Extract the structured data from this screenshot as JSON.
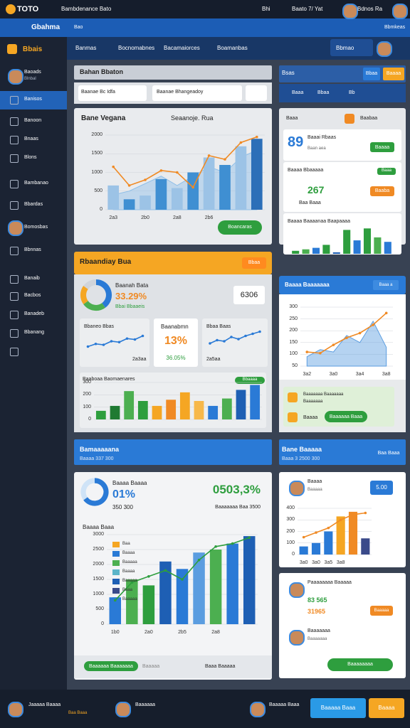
{
  "ui": {
    "topbar": {
      "brand": "TOTO",
      "title": "Bambdenance Bato",
      "badge": "Bhi",
      "status": "Baato 7/ Yat",
      "user": "Bdnos Ra"
    },
    "nav": {
      "title": "Gbahma",
      "link": "Bao",
      "right": "Bbmkeas"
    },
    "brand": "Bbais",
    "tabs": [
      "Banmas",
      "Bocnomabnes",
      "Bacamaiorces",
      "Boamanbas"
    ],
    "tab_action": "Bbmao",
    "sidebar": {
      "user": "Baoads",
      "user_sub": "Blnbal",
      "items": [
        "Banisos",
        "Banoon",
        "Bnaas",
        "Blons",
        "Bambanao",
        "Bbardas",
        "Bomosbas",
        "Bbnnas",
        "Banaib",
        "Bacbos",
        "Banadeb",
        "Bbanang"
      ]
    },
    "panel_a": {
      "title": "Bahan Bbaton",
      "search": "Baanae Bc Idfa",
      "filter": "Baanae Bhangeadoy"
    },
    "main_chart": {
      "title": "Bane Vegana",
      "subtitle": "Seaanoje. Rua",
      "button": "Boancaras"
    },
    "summary": {
      "title": "Rbaandiay Bua",
      "badge": "Bbaa",
      "donut_title": "Baanah Bata",
      "pct": "33.29%",
      "pct_sub": "Bbai Bbaaeis",
      "value": "6306",
      "card1": "Bbaneo Bbas",
      "card1_foot": "2a3aa",
      "card2": "Baanabmn",
      "card2_value": "13%",
      "card2_sub": "36.05%",
      "card3": "Bbaa Baas",
      "card3_foot": "2a5aa",
      "bars_title": "Baaboaa Baomaenares",
      "bars_badge": "Bbaaaa"
    },
    "right_top": {
      "title": "Bsas",
      "btn1": "Bbaa",
      "btn2": "Baaaa",
      "tabs": [
        "Baaa",
        "Bbaa",
        "Bb"
      ]
    },
    "right_card1": {
      "label": "Baaa",
      "badge": "Baabaa",
      "value": "89",
      "name": "Baaai Rbaas",
      "sub": "Baan aea",
      "button": "Baaaa"
    },
    "right_card2": {
      "title": "Baaaa Bbaaaaa",
      "badge": "Baaa",
      "value": "267",
      "sub": "Baa Baaa",
      "button": "Baaba"
    },
    "right_card3": {
      "title": "Baaaa Baaaanaa Baapaaaa"
    },
    "right_chart": {
      "title": "Baaaa Baaaaaaa",
      "button": "Baaa a"
    },
    "right_notice": {
      "line1": "Baaaaaaa Baaaaaaa",
      "line2": "Baaaaaaa",
      "icon_label": "Baaaa",
      "button": "Baaaaaa Baaa"
    },
    "section": {
      "title": "Bamaaaaana",
      "sub": "Baaaa 337 300",
      "title2": "Bane Baaaaa",
      "sub2": "Baaa 3 2500 300",
      "button": "Baa Baaa"
    },
    "bottom_card": {
      "title": "Baaaa Baaaa",
      "pct": "01%",
      "sub": "350 300",
      "big": "0503,3%",
      "big_sub": "Baaaaaaa Baa 3500"
    },
    "bottom_chart": {
      "title": "Baaaa Baaa",
      "button": "Baaaaaa Baaaaaaa",
      "link": "Baaaaa",
      "foot": "Baaa Baaaaa"
    },
    "bottom_right": {
      "name": "Baaaa",
      "sub": "Baaaaa",
      "value": "5.00"
    },
    "profile": {
      "name": "Paaaaaaaa Baaaaa",
      "value": "83 565",
      "value2": "31965",
      "name2": "Baaaaaaa",
      "sub2": "Baaaaaaa",
      "button": "Baaaaa",
      "button2": "Baaaaaaaa"
    },
    "footer": {
      "user": "Jaaaaa Baaaa",
      "sub": "Baa Baaa",
      "user2": "Baaaaaa",
      "user3": "Baaaaa Baaa",
      "btn": "Baaaaa Baaa",
      "btn2": "Baaaa"
    }
  },
  "chart_data": [
    {
      "type": "combo",
      "categories": [
        "2a3",
        null,
        "2b0",
        null,
        "2a8",
        null,
        "2b6",
        null,
        null,
        null
      ],
      "ylim": [
        0,
        2000
      ],
      "yticks": [
        0,
        500,
        1000,
        1500,
        2000
      ],
      "grid": true,
      "series": [
        {
          "kind": "area",
          "color": "#8fbfe8",
          "values": [
            400,
            500,
            700,
            900,
            650,
            900,
            1150,
            1000,
            1400,
            1600
          ]
        },
        {
          "kind": "bar",
          "colors": [
            "#9cc3e6",
            "#3f8fd2",
            "#9cc3e6",
            "#3f8fd2",
            "#9cc3e6",
            "#3f8fd2",
            "#9cc3e6",
            "#3f8fd2",
            "#9cc3e6",
            "#2c6fb8"
          ],
          "values": [
            650,
            280,
            380,
            820,
            580,
            1000,
            1400,
            1200,
            1700,
            1900
          ]
        },
        {
          "kind": "line",
          "color": "#f08a24",
          "dots": true,
          "values": [
            1150,
            650,
            800,
            1050,
            1000,
            600,
            1450,
            1350,
            1800,
            1950
          ]
        }
      ]
    },
    {
      "type": "line",
      "ylim": [
        0,
        100
      ],
      "series": [
        {
          "kind": "line",
          "color": "#2a7ad6",
          "dots": true,
          "values": [
            30,
            45,
            40,
            60,
            55,
            75,
            70,
            90
          ]
        }
      ]
    },
    {
      "type": "line",
      "ylim": [
        0,
        100
      ],
      "series": [
        {
          "kind": "line",
          "color": "#2a7ad6",
          "dots": true,
          "values": [
            40,
            55,
            50,
            70,
            60,
            75,
            85,
            95
          ]
        }
      ]
    },
    {
      "type": "bar",
      "ylim": [
        0,
        300
      ],
      "yticks": [
        0,
        100,
        200,
        300
      ],
      "grid": true,
      "series": [
        {
          "kind": "bar",
          "colors": [
            "#2e9e3e",
            "#1f7a32",
            "#4caf50",
            "#2e9e3e",
            "#f5a623",
            "#f08a24",
            "#f5a623",
            "#f7b84a",
            "#2a7ad6",
            "#4caf50",
            "#1e5fb4",
            "#2a7ad6"
          ],
          "values": [
            70,
            110,
            230,
            150,
            110,
            160,
            220,
            150,
            110,
            170,
            240,
            280
          ]
        }
      ]
    },
    {
      "type": "combo",
      "categories": [
        "3a2",
        null,
        "3a0",
        null,
        "3a4",
        null,
        "3a8"
      ],
      "ylim": [
        50,
        300
      ],
      "yticks": [
        50,
        100,
        150,
        200,
        250,
        300
      ],
      "grid": true,
      "series": [
        {
          "kind": "area",
          "color": "#5b9de0",
          "values": [
            90,
            120,
            110,
            180,
            150,
            240,
            130
          ]
        },
        {
          "kind": "line",
          "color": "#f08a24",
          "dots": true,
          "values": [
            110,
            105,
            140,
            170,
            190,
            225,
            275
          ]
        }
      ]
    },
    {
      "type": "bar",
      "ylim": [
        0,
        100
      ],
      "series": [
        {
          "kind": "bar",
          "colors": [
            "#2e9e3e",
            "#4caf50",
            "#2a7ad6",
            "#2e9e3e",
            "#1e5fb4",
            "#2e9e3e",
            "#2a7ad6",
            "#2e9e3e",
            "#4caf50",
            "#2a7ad6"
          ],
          "values": [
            10,
            15,
            20,
            30,
            5,
            80,
            45,
            85,
            55,
            40
          ]
        }
      ]
    },
    {
      "type": "combo",
      "categories": [
        "1b0",
        null,
        "2a0",
        null,
        "2b5",
        null,
        "2a8",
        null,
        null
      ],
      "ylim": [
        0,
        3000
      ],
      "yticks": [
        0,
        500,
        1000,
        1500,
        2000,
        2500,
        3000
      ],
      "grid": true,
      "legend": {
        "names": [
          "Baa",
          "Baaaa",
          "Baaaaa",
          "Baaaa",
          "Baaaaa",
          "Baaa",
          "Baaaaa"
        ],
        "colors": [
          "#f5a623",
          "#2a7ad6",
          "#4caf50",
          "#5bb5c9",
          "#1e5fb4",
          "#3a4a8a",
          "#9cc3e6"
        ]
      },
      "series": [
        {
          "kind": "bar",
          "colors": [
            "#2a7ad6",
            "#4caf50",
            "#2e9e3e",
            "#1e5fb4",
            "#2a7ad6",
            "#5b9de0",
            "#4caf50",
            "#2a7ad6",
            "#1e5fb4"
          ],
          "values": [
            900,
            1500,
            1300,
            2100,
            1850,
            2400,
            2500,
            2700,
            2950
          ]
        },
        {
          "kind": "line",
          "color": "#2e9e3e",
          "dots": true,
          "values": [
            800,
            1400,
            1600,
            1800,
            1500,
            2150,
            2600,
            2700,
            2900
          ]
        }
      ]
    },
    {
      "type": "combo",
      "categories": [
        "3a0",
        "3a0",
        "3a5",
        "3a8",
        null,
        null
      ],
      "ylim": [
        0,
        400
      ],
      "yticks": [
        0,
        100,
        200,
        300,
        400
      ],
      "grid": true,
      "series": [
        {
          "kind": "bar",
          "colors": [
            "#2a7ad6",
            "#2a7ad6",
            "#2a7ad6",
            "#f5a623",
            "#f08a24",
            "#3a4a8a"
          ],
          "values": [
            70,
            100,
            200,
            330,
            370,
            140
          ]
        },
        {
          "kind": "line",
          "color": "#f08a24",
          "dots": true,
          "values": [
            150,
            190,
            230,
            300,
            345,
            360
          ]
        }
      ]
    },
    {
      "type": "pie",
      "values": [
        40,
        25,
        20,
        15
      ],
      "colors": [
        "#2a7ad6",
        "#4caf50",
        "#f5a623",
        "#d0d4da"
      ]
    },
    {
      "type": "pie",
      "values": [
        65,
        35
      ],
      "colors": [
        "#2a7ad6",
        "#cfe3f7"
      ]
    }
  ]
}
